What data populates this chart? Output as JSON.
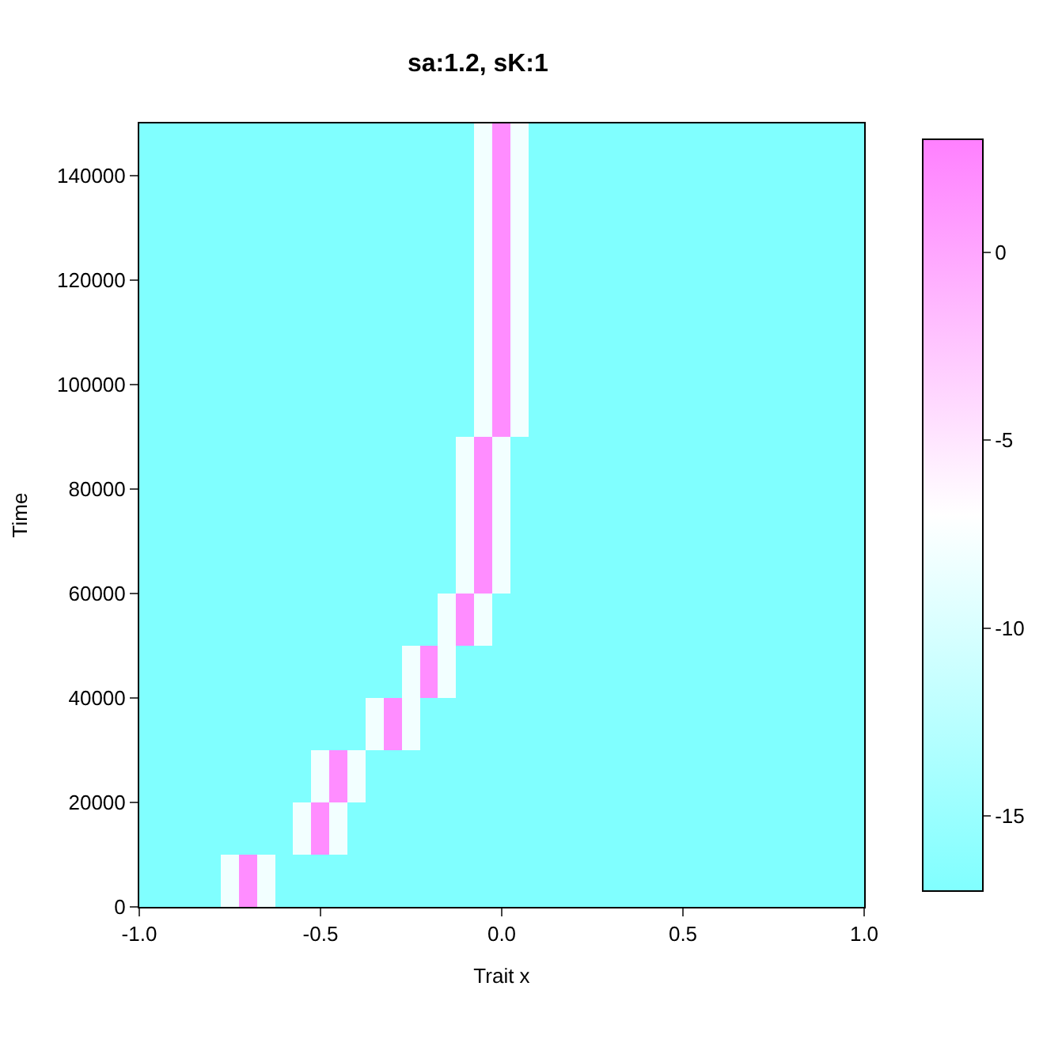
{
  "chart_data": {
    "type": "heatmap",
    "title": "sa:1.2, sK:1",
    "xlabel": "Trait x",
    "ylabel": "Time",
    "x": [
      -1.0,
      -0.95,
      -0.9,
      -0.85,
      -0.8,
      -0.75,
      -0.7,
      -0.65,
      -0.6,
      -0.55,
      -0.5,
      -0.45,
      -0.4,
      -0.35,
      -0.3,
      -0.25,
      -0.2,
      -0.15,
      -0.1,
      -0.05,
      0.0,
      0.05,
      0.1,
      0.15,
      0.2,
      0.25,
      0.3,
      0.35,
      0.4,
      0.45,
      0.5,
      0.55,
      0.6,
      0.65,
      0.7,
      0.75,
      0.8,
      0.85,
      0.9,
      0.95,
      1.0
    ],
    "y": [
      145000,
      135000,
      125000,
      115000,
      105000,
      95000,
      85000,
      75000,
      65000,
      55000,
      45000,
      35000,
      25000,
      15000,
      5000
    ],
    "cells": [
      [
        -17,
        -17,
        -17,
        -17,
        -17,
        -17,
        -17,
        -17,
        -17,
        -17,
        -17,
        -17,
        -17,
        -17,
        -17,
        -17,
        -17,
        -17,
        -17,
        -8,
        2,
        -8,
        -17,
        -17,
        -17,
        -17,
        -17,
        -17,
        -17,
        -17,
        -17,
        -17,
        -17,
        -17,
        -17,
        -17,
        -17,
        -17,
        -17,
        -17,
        -17
      ],
      [
        -17,
        -17,
        -17,
        -17,
        -17,
        -17,
        -17,
        -17,
        -17,
        -17,
        -17,
        -17,
        -17,
        -17,
        -17,
        -17,
        -17,
        -17,
        -17,
        -8,
        2,
        -8,
        -17,
        -17,
        -17,
        -17,
        -17,
        -17,
        -17,
        -17,
        -17,
        -17,
        -17,
        -17,
        -17,
        -17,
        -17,
        -17,
        -17,
        -17,
        -17
      ],
      [
        -17,
        -17,
        -17,
        -17,
        -17,
        -17,
        -17,
        -17,
        -17,
        -17,
        -17,
        -17,
        -17,
        -17,
        -17,
        -17,
        -17,
        -17,
        -17,
        -8,
        2,
        -8,
        -17,
        -17,
        -17,
        -17,
        -17,
        -17,
        -17,
        -17,
        -17,
        -17,
        -17,
        -17,
        -17,
        -17,
        -17,
        -17,
        -17,
        -17,
        -17
      ],
      [
        -17,
        -17,
        -17,
        -17,
        -17,
        -17,
        -17,
        -17,
        -17,
        -17,
        -17,
        -17,
        -17,
        -17,
        -17,
        -17,
        -17,
        -17,
        -17,
        -8,
        2,
        -8,
        -17,
        -17,
        -17,
        -17,
        -17,
        -17,
        -17,
        -17,
        -17,
        -17,
        -17,
        -17,
        -17,
        -17,
        -17,
        -17,
        -17,
        -17,
        -17
      ],
      [
        -17,
        -17,
        -17,
        -17,
        -17,
        -17,
        -17,
        -17,
        -17,
        -17,
        -17,
        -17,
        -17,
        -17,
        -17,
        -17,
        -17,
        -17,
        -17,
        -8,
        2,
        -8,
        -17,
        -17,
        -17,
        -17,
        -17,
        -17,
        -17,
        -17,
        -17,
        -17,
        -17,
        -17,
        -17,
        -17,
        -17,
        -17,
        -17,
        -17,
        -17
      ],
      [
        -17,
        -17,
        -17,
        -17,
        -17,
        -17,
        -17,
        -17,
        -17,
        -17,
        -17,
        -17,
        -17,
        -17,
        -17,
        -17,
        -17,
        -17,
        -17,
        -8,
        2,
        -8,
        -17,
        -17,
        -17,
        -17,
        -17,
        -17,
        -17,
        -17,
        -17,
        -17,
        -17,
        -17,
        -17,
        -17,
        -17,
        -17,
        -17,
        -17,
        -17
      ],
      [
        -17,
        -17,
        -17,
        -17,
        -17,
        -17,
        -17,
        -17,
        -17,
        -17,
        -17,
        -17,
        -17,
        -17,
        -17,
        -17,
        -17,
        -17,
        -8,
        2,
        -8,
        -17,
        -17,
        -17,
        -17,
        -17,
        -17,
        -17,
        -17,
        -17,
        -17,
        -17,
        -17,
        -17,
        -17,
        -17,
        -17,
        -17,
        -17,
        -17,
        -17
      ],
      [
        -17,
        -17,
        -17,
        -17,
        -17,
        -17,
        -17,
        -17,
        -17,
        -17,
        -17,
        -17,
        -17,
        -17,
        -17,
        -17,
        -17,
        -17,
        -8,
        2,
        -8,
        -17,
        -17,
        -17,
        -17,
        -17,
        -17,
        -17,
        -17,
        -17,
        -17,
        -17,
        -17,
        -17,
        -17,
        -17,
        -17,
        -17,
        -17,
        -17,
        -17
      ],
      [
        -17,
        -17,
        -17,
        -17,
        -17,
        -17,
        -17,
        -17,
        -17,
        -17,
        -17,
        -17,
        -17,
        -17,
        -17,
        -17,
        -17,
        -17,
        -8,
        2,
        -8,
        -17,
        -17,
        -17,
        -17,
        -17,
        -17,
        -17,
        -17,
        -17,
        -17,
        -17,
        -17,
        -17,
        -17,
        -17,
        -17,
        -17,
        -17,
        -17,
        -17
      ],
      [
        -17,
        -17,
        -17,
        -17,
        -17,
        -17,
        -17,
        -17,
        -17,
        -17,
        -17,
        -17,
        -17,
        -17,
        -17,
        -17,
        -17,
        -8,
        2,
        -8,
        -17,
        -17,
        -17,
        -17,
        -17,
        -17,
        -17,
        -17,
        -17,
        -17,
        -17,
        -17,
        -17,
        -17,
        -17,
        -17,
        -17,
        -17,
        -17,
        -17,
        -17
      ],
      [
        -17,
        -17,
        -17,
        -17,
        -17,
        -17,
        -17,
        -17,
        -17,
        -17,
        -17,
        -17,
        -17,
        -17,
        -17,
        -8,
        2,
        -8,
        -17,
        -17,
        -17,
        -17,
        -17,
        -17,
        -17,
        -17,
        -17,
        -17,
        -17,
        -17,
        -17,
        -17,
        -17,
        -17,
        -17,
        -17,
        -17,
        -17,
        -17,
        -17,
        -17
      ],
      [
        -17,
        -17,
        -17,
        -17,
        -17,
        -17,
        -17,
        -17,
        -17,
        -17,
        -17,
        -17,
        -17,
        -8,
        2,
        -8,
        -17,
        -17,
        -17,
        -17,
        -17,
        -17,
        -17,
        -17,
        -17,
        -17,
        -17,
        -17,
        -17,
        -17,
        -17,
        -17,
        -17,
        -17,
        -17,
        -17,
        -17,
        -17,
        -17,
        -17,
        -17
      ],
      [
        -17,
        -17,
        -17,
        -17,
        -17,
        -17,
        -17,
        -17,
        -17,
        -17,
        -8,
        2,
        -8,
        -17,
        -17,
        -17,
        -17,
        -17,
        -17,
        -17,
        -17,
        -17,
        -17,
        -17,
        -17,
        -17,
        -17,
        -17,
        -17,
        -17,
        -17,
        -17,
        -17,
        -17,
        -17,
        -17,
        -17,
        -17,
        -17,
        -17,
        -17
      ],
      [
        -17,
        -17,
        -17,
        -17,
        -17,
        -17,
        -17,
        -17,
        -17,
        -8,
        2,
        -8,
        -17,
        -17,
        -17,
        -17,
        -17,
        -17,
        -17,
        -17,
        -17,
        -17,
        -17,
        -17,
        -17,
        -17,
        -17,
        -17,
        -17,
        -17,
        -17,
        -17,
        -17,
        -17,
        -17,
        -17,
        -17,
        -17,
        -17,
        -17,
        -17
      ],
      [
        -17,
        -17,
        -17,
        -17,
        -17,
        -8,
        2,
        -8,
        -17,
        -17,
        -17,
        -17,
        -17,
        -17,
        -17,
        -17,
        -17,
        -17,
        -17,
        -17,
        -17,
        -17,
        -17,
        -17,
        -17,
        -17,
        -17,
        -17,
        -17,
        -17,
        -17,
        -17,
        -17,
        -17,
        -17,
        -17,
        -17,
        -17,
        -17,
        -17,
        -17
      ]
    ],
    "colors": [
      "#80ffff",
      "#ffffff",
      "#ff80ff"
    ],
    "clim": [
      -17,
      3
    ],
    "cticks": [
      -15,
      -10,
      -5,
      0
    ],
    "xlim": [
      -1.0,
      1.0
    ],
    "xticks": [
      {
        "value": -1,
        "label": "-1.0"
      },
      {
        "value": -0.5,
        "label": "-0.5"
      },
      {
        "value": 0,
        "label": "0.0"
      },
      {
        "value": 0.5,
        "label": "0.5"
      },
      {
        "value": 1,
        "label": "1.0"
      }
    ],
    "ylim": [
      0,
      150000
    ],
    "yticks": [
      0,
      20000,
      40000,
      60000,
      80000,
      100000,
      120000,
      140000
    ]
  }
}
